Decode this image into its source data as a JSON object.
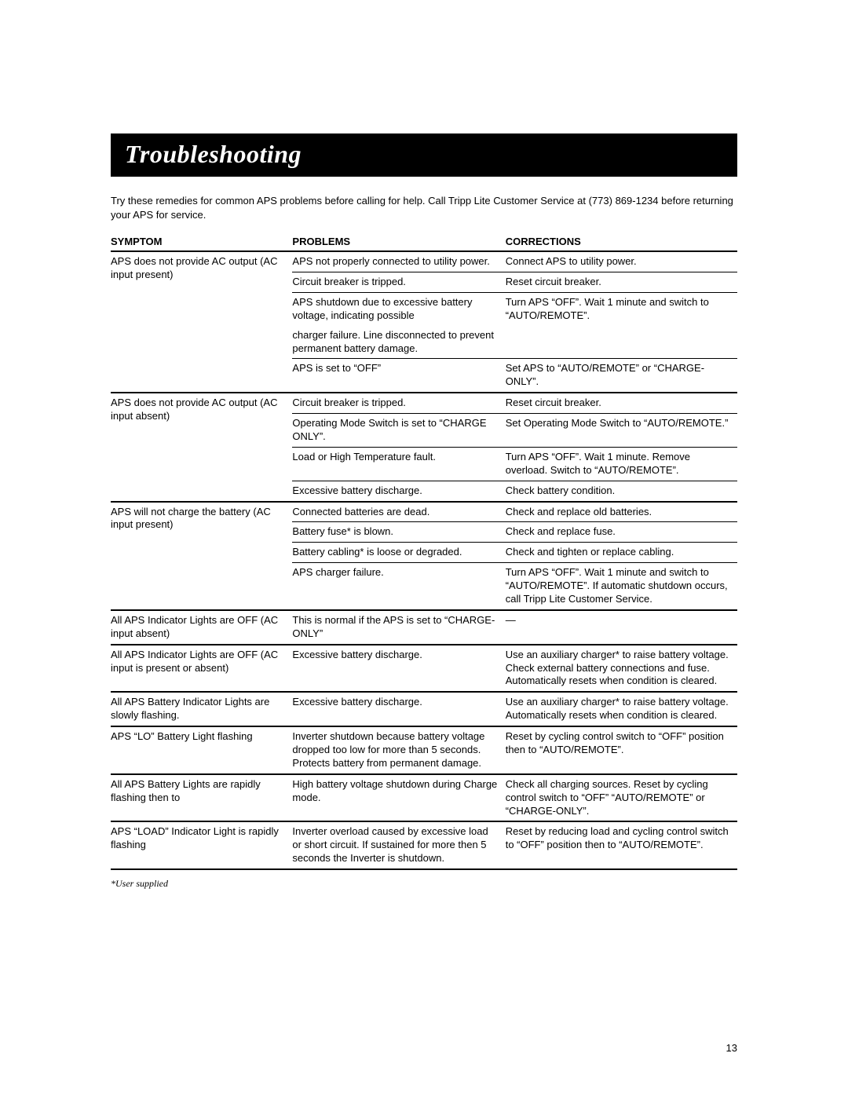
{
  "title": "Troubleshooting",
  "intro": "Try these remedies for common APS problems before calling for help. Call Tripp Lite Customer Service at (773) 869-1234 before returning your APS for service.",
  "headers": {
    "c1": "SYMPTOM",
    "c2": "PROBLEMS",
    "c3": "CORRECTIONS"
  },
  "groups": [
    {
      "symptom": "APS does not provide AC output (AC input present)",
      "rows": [
        {
          "problem": "APS not properly connected to utility power.",
          "correction": "Connect APS to utility power."
        },
        {
          "problem": "Circuit breaker is tripped.",
          "correction": "Reset circuit breaker."
        },
        {
          "problem": "APS shutdown due to excessive battery voltage, indicating possible",
          "correction": "Turn APS “OFF”. Wait 1 minute and switch to “AUTO/REMOTE”.",
          "continues": true
        },
        {
          "problem": "charger failure. Line disconnected to prevent permanent battery damage.",
          "correction": ""
        },
        {
          "problem": "APS is set to “OFF”",
          "correction": "Set APS to “AUTO/REMOTE” or “CHARGE-ONLY”."
        }
      ]
    },
    {
      "symptom": "APS does not provide AC output (AC input absent)",
      "rows": [
        {
          "problem": "Circuit breaker is tripped.",
          "correction": "Reset circuit breaker."
        },
        {
          "problem": "Operating Mode Switch is set to “CHARGE ONLY”.",
          "correction": "Set Operating Mode Switch to “AUTO/REMOTE.”"
        },
        {
          "problem": "Load or High Temperature fault.",
          "correction": "Turn APS “OFF”. Wait 1 minute. Remove overload. Switch to “AUTO/REMOTE”."
        },
        {
          "problem": "Excessive battery discharge.",
          "correction": "Check battery condition."
        }
      ]
    },
    {
      "symptom": "APS will not charge the battery (AC input present)",
      "rows": [
        {
          "problem": "Connected batteries are dead.",
          "correction": "Check and replace old batteries."
        },
        {
          "problem": "Battery fuse* is blown.",
          "correction": "Check and replace fuse."
        },
        {
          "problem": "Battery cabling* is loose or degraded.",
          "correction": "Check and tighten or replace cabling."
        },
        {
          "problem": "APS charger failure.",
          "correction": "Turn APS “OFF”. Wait 1 minute and switch to “AUTO/REMOTE”. If automatic shutdown occurs, call Tripp Lite Customer Service."
        }
      ]
    },
    {
      "symptom": "All APS Indicator Lights are OFF (AC input absent)",
      "rows": [
        {
          "problem": "This is normal if the APS is set to  “CHARGE-ONLY”",
          "correction": "—"
        }
      ]
    },
    {
      "symptom": "All APS Indicator Lights are OFF (AC input is present or absent)",
      "rows": [
        {
          "problem": "Excessive battery discharge.",
          "correction": "Use an auxiliary charger* to raise battery voltage. Check external battery connections and fuse. Automatically resets when condition is cleared."
        }
      ]
    },
    {
      "symptom": "All APS Battery Indicator Lights are slowly flashing.",
      "rows": [
        {
          "problem": "Excessive battery discharge.",
          "correction": "Use an auxiliary charger* to raise battery voltage. Automatically resets when condition is cleared."
        }
      ]
    },
    {
      "symptom": "APS “LO” Battery Light flashing",
      "rows": [
        {
          "problem": "Inverter shutdown because battery voltage dropped too low for more than 5 seconds. Protects battery from permanent damage.",
          "correction": "Reset by cycling control switch to “OFF” position then to “AUTO/REMOTE”."
        }
      ]
    },
    {
      "symptom": "All APS Battery Lights are rapidly flashing then to",
      "rows": [
        {
          "problem": "High battery voltage shutdown during Charge mode.",
          "correction": "Check all charging sources. Reset by cycling control switch to “OFF” “AUTO/REMOTE” or “CHARGE-ONLY”."
        }
      ]
    },
    {
      "symptom": "APS “LOAD” Indicator Light is rapidly flashing",
      "rows": [
        {
          "problem": "Inverter overload caused by excessive load or short circuit. If sustained for more then 5 seconds the Inverter is shutdown.",
          "correction": "Reset by reducing load and cycling control switch to “OFF” position then to “AUTO/REMOTE”."
        }
      ]
    }
  ],
  "footnote": "*User supplied",
  "page_number": "13"
}
